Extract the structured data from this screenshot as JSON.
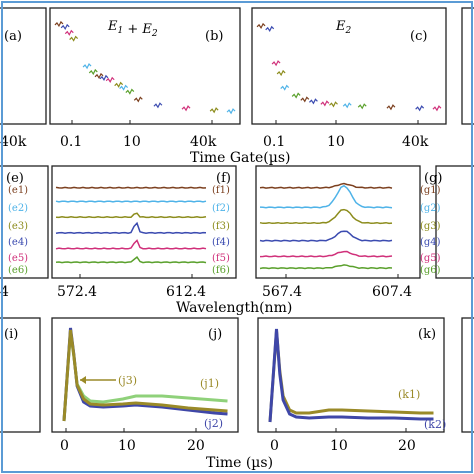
{
  "row1": {
    "shared_xlabel": "Time Gate(µs)",
    "panels": [
      {
        "id": "a",
        "label": "(a)",
        "title": "",
        "ticks": [
          "40k"
        ]
      },
      {
        "id": "b",
        "label": "(b)",
        "title": "E1 + E2",
        "ticks": [
          "0.1",
          "10",
          "40k"
        ]
      },
      {
        "id": "c",
        "label": "(c)",
        "title": "E2",
        "ticks": [
          "0.1",
          "10",
          "40k"
        ]
      }
    ]
  },
  "row2": {
    "shared_xlabel": "Wavelength(nm)",
    "panels": [
      {
        "id": "e",
        "label": "(e)",
        "ticks": [
          "4"
        ],
        "trace_labels": [
          "(e1)",
          "(e2)",
          "(e3)",
          "(e4)",
          "(e5)",
          "(e6)"
        ]
      },
      {
        "id": "f",
        "label": "(f)",
        "ticks": [
          "572.4",
          "612.4"
        ],
        "trace_labels": [
          "(f1)",
          "(f2)",
          "(f3)",
          "(f4)",
          "(f5)",
          "(f6)"
        ]
      },
      {
        "id": "g",
        "label": "(g)",
        "ticks": [
          "567.4",
          "607.4"
        ],
        "trace_labels": [
          "(g1)",
          "(g2)",
          "(g3)",
          "(g4)",
          "(g5)",
          "(g6)"
        ]
      }
    ]
  },
  "row3": {
    "shared_xlabel": "Time (µs)",
    "panels": [
      {
        "id": "i",
        "label": "(i)",
        "ticks": [],
        "trace_labels": []
      },
      {
        "id": "j",
        "label": "(j)",
        "ticks": [
          "0",
          "10",
          "20"
        ],
        "trace_labels": [
          "(j1)",
          "(j2)",
          "(j3)"
        ]
      },
      {
        "id": "k",
        "label": "(k)",
        "ticks": [
          "0",
          "10",
          "20"
        ],
        "trace_labels": [
          "(k1)",
          "(k2)"
        ]
      }
    ]
  },
  "colors": {
    "trace1": "#7b3f1e",
    "trace2": "#4fb3e8",
    "trace3": "#8c8c1c",
    "trace4": "#3b4bb0",
    "trace5": "#d0307a",
    "trace6": "#5aa02c",
    "j1": "#8fd17a",
    "j2": "#3f47a8",
    "j3": "#9a8a28",
    "k1": "#9a8a28",
    "k2": "#3f47a8",
    "frame": "#5b9bd5"
  },
  "chart_data": [
    {
      "panel": "b",
      "type": "scatter",
      "title": "E1 + E2",
      "xlabel": "Time Gate(µs)",
      "x_scale": "log",
      "x": [
        0.03,
        0.05,
        0.07,
        0.1,
        0.3,
        0.5,
        0.8,
        1.2,
        2,
        4,
        6,
        10,
        20,
        100,
        1000,
        10000,
        40000
      ],
      "y": [
        0.95,
        0.92,
        0.86,
        0.8,
        0.52,
        0.46,
        0.42,
        0.4,
        0.38,
        0.33,
        0.3,
        0.26,
        0.18,
        0.12,
        0.09,
        0.07,
        0.06
      ]
    },
    {
      "panel": "c",
      "type": "scatter",
      "title": "E2",
      "xlabel": "Time Gate(µs)",
      "x_scale": "log",
      "x": [
        0.03,
        0.06,
        0.1,
        0.15,
        0.2,
        0.5,
        1,
        2,
        5,
        10,
        30,
        100,
        1000,
        10000,
        40000
      ],
      "y": [
        0.93,
        0.9,
        0.55,
        0.45,
        0.3,
        0.22,
        0.18,
        0.16,
        0.14,
        0.13,
        0.12,
        0.11,
        0.1,
        0.09,
        0.09
      ]
    },
    {
      "panel": "j",
      "type": "line",
      "xlabel": "Time (µs)",
      "series": [
        {
          "name": "(j1)",
          "x": [
            -1,
            0,
            0.5,
            1,
            2,
            3,
            5,
            8,
            10,
            14,
            18,
            22,
            24
          ],
          "y": [
            0.05,
            0.95,
            0.7,
            0.42,
            0.3,
            0.25,
            0.24,
            0.27,
            0.3,
            0.3,
            0.28,
            0.26,
            0.25
          ]
        },
        {
          "name": "(j2)",
          "x": [
            -1,
            0,
            0.5,
            1,
            2,
            3,
            5,
            8,
            10,
            14,
            18,
            22,
            24
          ],
          "y": [
            0.05,
            0.98,
            0.72,
            0.4,
            0.24,
            0.2,
            0.19,
            0.2,
            0.21,
            0.19,
            0.16,
            0.13,
            0.12
          ]
        },
        {
          "name": "(j3)",
          "x": [
            -1,
            0,
            0.5,
            1,
            2,
            3,
            5,
            8,
            10,
            14,
            18,
            22,
            24
          ],
          "y": [
            0.05,
            0.96,
            0.71,
            0.41,
            0.27,
            0.22,
            0.21,
            0.22,
            0.23,
            0.21,
            0.18,
            0.16,
            0.15
          ]
        }
      ]
    },
    {
      "panel": "k",
      "type": "line",
      "xlabel": "Time (µs)",
      "series": [
        {
          "name": "(k1)",
          "x": [
            -1,
            0,
            0.5,
            1,
            2,
            3,
            5,
            8,
            10,
            14,
            18,
            22,
            24
          ],
          "y": [
            0.04,
            0.95,
            0.55,
            0.3,
            0.16,
            0.13,
            0.13,
            0.16,
            0.16,
            0.15,
            0.14,
            0.13,
            0.13
          ]
        },
        {
          "name": "(k2)",
          "x": [
            -1,
            0,
            0.5,
            1,
            2,
            3,
            5,
            8,
            10,
            14,
            18,
            22,
            24
          ],
          "y": [
            0.04,
            0.97,
            0.52,
            0.26,
            0.12,
            0.09,
            0.08,
            0.09,
            0.09,
            0.08,
            0.08,
            0.07,
            0.07
          ]
        }
      ]
    },
    {
      "panel": "f",
      "type": "line",
      "xlabel": "Wavelength(nm)",
      "series": [
        {
          "name": "(f1)",
          "baseline": 0.88,
          "peak": 0.0
        },
        {
          "name": "(f2)",
          "baseline": 0.74,
          "peak": 0.0
        },
        {
          "name": "(f3)",
          "baseline": 0.58,
          "peak": 0.05
        },
        {
          "name": "(f4)",
          "baseline": 0.42,
          "peak": 0.12
        },
        {
          "name": "(f5)",
          "baseline": 0.26,
          "peak": 0.1
        },
        {
          "name": "(f6)",
          "baseline": 0.12,
          "peak": 0.06
        }
      ]
    },
    {
      "panel": "g",
      "type": "line",
      "xlabel": "Wavelength(nm)",
      "series": [
        {
          "name": "(g1)",
          "baseline": 0.88,
          "peak": 0.04
        },
        {
          "name": "(g2)",
          "baseline": 0.68,
          "peak": 0.22
        },
        {
          "name": "(g3)",
          "baseline": 0.52,
          "peak": 0.14
        },
        {
          "name": "(g4)",
          "baseline": 0.34,
          "peak": 0.1
        },
        {
          "name": "(g5)",
          "baseline": 0.18,
          "peak": 0.05
        },
        {
          "name": "(g6)",
          "baseline": 0.06,
          "peak": 0.03
        }
      ]
    }
  ]
}
